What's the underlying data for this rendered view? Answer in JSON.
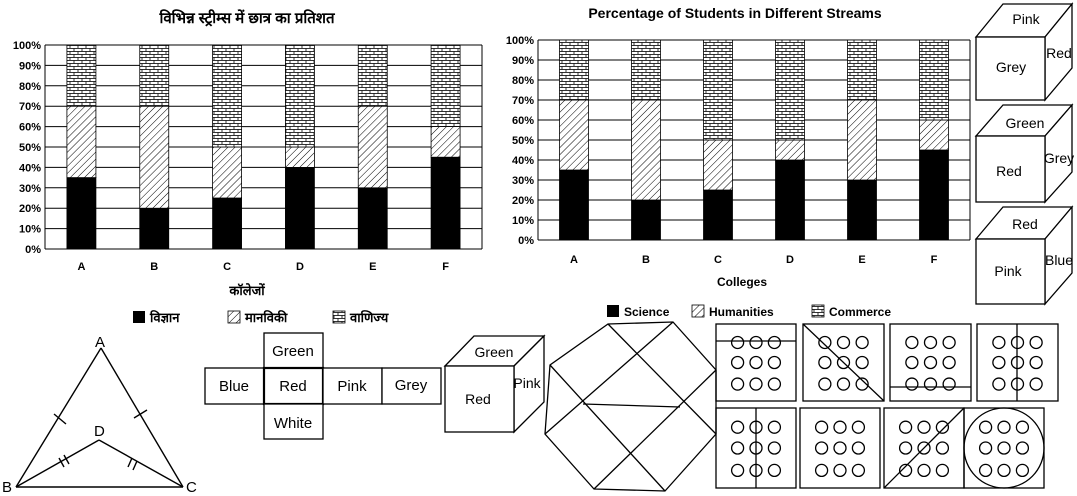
{
  "chart_data": [
    {
      "type": "bar",
      "stacked": true,
      "title": "विभिन्न स्ट्रीम्स में छात्र का प्रतिशत",
      "xlabel": "कॉलेजों",
      "ylabel": "",
      "ylim": [
        0,
        100
      ],
      "yticks": [
        "0%",
        "10%",
        "20%",
        "30%",
        "40%",
        "50%",
        "60%",
        "70%",
        "80%",
        "90%",
        "100%"
      ],
      "categories": [
        "A",
        "B",
        "C",
        "D",
        "E",
        "F"
      ],
      "series": [
        {
          "name": "विज्ञान",
          "values": [
            35,
            20,
            25,
            40,
            30,
            45
          ]
        },
        {
          "name": "मानविकी",
          "values": [
            35,
            50,
            25,
            10,
            40,
            15
          ]
        },
        {
          "name": "वाणिज्य",
          "values": [
            30,
            30,
            50,
            50,
            30,
            40
          ]
        }
      ],
      "legend": "bottom"
    },
    {
      "type": "bar",
      "stacked": true,
      "title": "Percentage of Students in Different Streams",
      "xlabel": "Colleges",
      "ylabel": "",
      "ylim": [
        0,
        100
      ],
      "yticks": [
        "0%",
        "10%",
        "20%",
        "30%",
        "40%",
        "50%",
        "60%",
        "70%",
        "80%",
        "90%",
        "100%"
      ],
      "categories": [
        "A",
        "B",
        "C",
        "D",
        "E",
        "F"
      ],
      "series": [
        {
          "name": "Science",
          "values": [
            35,
            20,
            25,
            40,
            30,
            45
          ]
        },
        {
          "name": "Humanities",
          "values": [
            35,
            50,
            25,
            10,
            40,
            15
          ]
        },
        {
          "name": "Commerce",
          "values": [
            30,
            30,
            50,
            50,
            30,
            40
          ]
        }
      ],
      "legend": "bottom"
    }
  ],
  "cubes": [
    {
      "top": "Pink",
      "front": "Grey",
      "side": "Red"
    },
    {
      "top": "Green",
      "front": "Red",
      "side": "Grey"
    },
    {
      "top": "Red",
      "front": "Pink",
      "side": "Blue"
    }
  ],
  "net": {
    "top": "Green",
    "left": "Blue",
    "center": "Red",
    "right": "Pink",
    "far_right": "Grey",
    "bottom": "White"
  },
  "net_cube": {
    "top": "Green",
    "front": "Red",
    "side": "Pink"
  },
  "triangle": {
    "vertices": [
      "A",
      "B",
      "C",
      "D"
    ]
  }
}
